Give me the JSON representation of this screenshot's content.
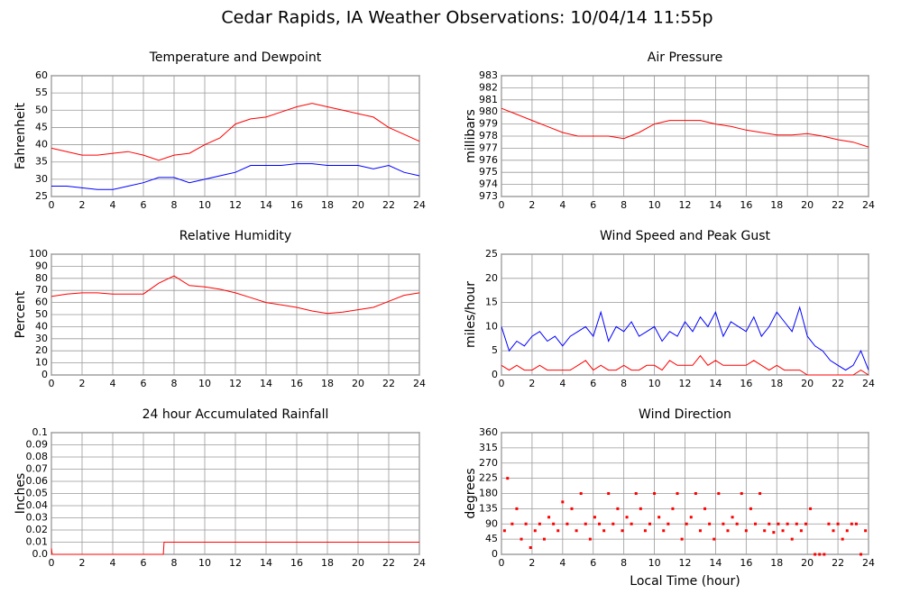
{
  "title": "Cedar Rapids, IA Weather Observations: 10/04/14 11:55p",
  "chart_data": [
    {
      "type": "line",
      "title": "Temperature and Dewpoint",
      "ylabel": "Fahrenheit",
      "x": [
        0,
        1,
        2,
        3,
        4,
        5,
        6,
        7,
        8,
        9,
        10,
        11,
        12,
        13,
        14,
        15,
        16,
        17,
        18,
        19,
        20,
        21,
        22,
        23,
        24
      ],
      "series": [
        {
          "color": "#ff0000",
          "values": [
            39,
            38,
            37,
            37,
            37.5,
            38,
            37,
            35.5,
            37,
            37.5,
            40,
            42,
            46,
            47.5,
            48,
            49.5,
            51,
            52,
            51,
            50,
            49,
            48,
            45,
            43,
            41
          ]
        },
        {
          "color": "#0000ff",
          "values": [
            28,
            28,
            27.5,
            27,
            27,
            28,
            29,
            30.5,
            30.5,
            29,
            30,
            31,
            32,
            34,
            34,
            34,
            34.5,
            34.5,
            34,
            34,
            34,
            33,
            34,
            32,
            31
          ]
        }
      ],
      "xlim": [
        0,
        24
      ],
      "xticks": [
        0,
        2,
        4,
        6,
        8,
        10,
        12,
        14,
        16,
        18,
        20,
        22,
        24
      ],
      "ylim": [
        25,
        60
      ],
      "yticks": [
        25,
        30,
        35,
        40,
        45,
        50,
        55,
        60
      ],
      "grid": true
    },
    {
      "type": "line",
      "title": "Air Pressure",
      "ylabel": "millibars",
      "x": [
        0,
        1,
        2,
        3,
        4,
        5,
        6,
        7,
        8,
        9,
        10,
        11,
        12,
        13,
        14,
        15,
        16,
        17,
        18,
        19,
        20,
        21,
        22,
        23,
        24
      ],
      "series": [
        {
          "color": "#ff0000",
          "values": [
            980.3,
            979.8,
            979.3,
            978.8,
            978.3,
            978,
            978,
            978,
            977.8,
            978.3,
            979,
            979.3,
            979.3,
            979.3,
            979,
            978.8,
            978.5,
            978.3,
            978.1,
            978.1,
            978.2,
            978,
            977.7,
            977.5,
            977.1
          ]
        }
      ],
      "xlim": [
        0,
        24
      ],
      "xticks": [
        0,
        2,
        4,
        6,
        8,
        10,
        12,
        14,
        16,
        18,
        20,
        22,
        24
      ],
      "ylim": [
        973,
        983
      ],
      "yticks": [
        973,
        974,
        975,
        976,
        977,
        978,
        979,
        980,
        981,
        982,
        983
      ],
      "grid": true
    },
    {
      "type": "line",
      "title": "Relative Humidity",
      "ylabel": "Percent",
      "x": [
        0,
        1,
        2,
        3,
        4,
        5,
        6,
        7,
        8,
        9,
        10,
        11,
        12,
        13,
        14,
        15,
        16,
        17,
        18,
        19,
        20,
        21,
        22,
        23,
        24
      ],
      "series": [
        {
          "color": "#ff0000",
          "values": [
            65,
            67,
            68,
            68,
            67,
            67,
            67,
            76,
            82,
            74,
            73,
            71,
            68,
            64,
            60,
            58,
            56,
            53,
            51,
            52,
            54,
            56,
            61,
            66,
            68
          ]
        }
      ],
      "xlim": [
        0,
        24
      ],
      "xticks": [
        0,
        2,
        4,
        6,
        8,
        10,
        12,
        14,
        16,
        18,
        20,
        22,
        24
      ],
      "ylim": [
        0,
        100
      ],
      "yticks": [
        0,
        10,
        20,
        30,
        40,
        50,
        60,
        70,
        80,
        90,
        100
      ],
      "grid": true
    },
    {
      "type": "line",
      "title": "Wind Speed and Peak Gust",
      "ylabel": "miles/hour",
      "x": [
        0,
        0.5,
        1,
        1.5,
        2,
        2.5,
        3,
        3.5,
        4,
        4.5,
        5,
        5.5,
        6,
        6.5,
        7,
        7.5,
        8,
        8.5,
        9,
        9.5,
        10,
        10.5,
        11,
        11.5,
        12,
        12.5,
        13,
        13.5,
        14,
        14.5,
        15,
        15.5,
        16,
        16.5,
        17,
        17.5,
        18,
        18.5,
        19,
        19.5,
        20,
        20.5,
        21,
        21.5,
        22,
        22.5,
        23,
        23.5,
        24
      ],
      "series": [
        {
          "color": "#0000ff",
          "values": [
            10,
            5,
            7,
            6,
            8,
            9,
            7,
            8,
            6,
            8,
            9,
            10,
            8,
            13,
            7,
            10,
            9,
            11,
            8,
            9,
            10,
            7,
            9,
            8,
            11,
            9,
            12,
            10,
            13,
            8,
            11,
            10,
            9,
            12,
            8,
            10,
            13,
            11,
            9,
            14,
            8,
            6,
            5,
            3,
            2,
            1,
            2,
            5,
            1
          ]
        },
        {
          "color": "#ff0000",
          "values": [
            2,
            1,
            2,
            1,
            1,
            2,
            1,
            1,
            1,
            1,
            2,
            3,
            1,
            2,
            1,
            1,
            2,
            1,
            1,
            2,
            2,
            1,
            3,
            2,
            2,
            2,
            4,
            2,
            3,
            2,
            2,
            2,
            2,
            3,
            2,
            1,
            2,
            1,
            1,
            1,
            0,
            0,
            0,
            0,
            0,
            0,
            0,
            1,
            0
          ]
        }
      ],
      "xlim": [
        0,
        24
      ],
      "xticks": [
        0,
        2,
        4,
        6,
        8,
        10,
        12,
        14,
        16,
        18,
        20,
        22,
        24
      ],
      "ylim": [
        0,
        25
      ],
      "yticks": [
        0,
        5,
        10,
        15,
        20,
        25
      ],
      "grid": true
    },
    {
      "type": "line",
      "title": "24 hour Accumulated Rainfall",
      "ylabel": "Inches",
      "x": [
        0,
        0.05,
        0.1,
        7.3,
        7.35,
        24
      ],
      "series": [
        {
          "color": "#ff0000",
          "values": [
            0.005,
            0,
            0,
            0,
            0.01,
            0.01
          ]
        }
      ],
      "xlim": [
        0,
        24
      ],
      "xticks": [
        0,
        2,
        4,
        6,
        8,
        10,
        12,
        14,
        16,
        18,
        20,
        22,
        24
      ],
      "ylim": [
        0,
        0.1
      ],
      "yticks": [
        {
          "value": 0,
          "label": "0.0"
        },
        0.01,
        0.02,
        0.03,
        0.04,
        0.05,
        0.06,
        0.07,
        0.08,
        0.09,
        0.1
      ],
      "grid": true
    },
    {
      "type": "scatter",
      "title": "Wind Direction",
      "ylabel": "degrees",
      "xlabel": "Local Time (hour)",
      "color": "#ff0000",
      "x": [
        0.2,
        0.4,
        0.7,
        1,
        1.3,
        1.6,
        1.9,
        2.2,
        2.5,
        2.8,
        3.1,
        3.4,
        3.7,
        4,
        4.3,
        4.6,
        4.9,
        5.2,
        5.5,
        5.8,
        6.1,
        6.4,
        6.7,
        7,
        7.3,
        7.6,
        7.9,
        8.2,
        8.5,
        8.8,
        9.1,
        9.4,
        9.7,
        10,
        10.3,
        10.6,
        10.9,
        11.2,
        11.5,
        11.8,
        12.1,
        12.4,
        12.7,
        13,
        13.3,
        13.6,
        13.9,
        14.2,
        14.5,
        14.8,
        15.1,
        15.4,
        15.7,
        16,
        16.3,
        16.6,
        16.9,
        17.2,
        17.5,
        17.8,
        18.1,
        18.4,
        18.7,
        19,
        19.3,
        19.6,
        19.9,
        20.2,
        20.5,
        20.8,
        21.1,
        21.4,
        21.7,
        22,
        22.3,
        22.6,
        22.9,
        23.2,
        23.5,
        23.8
      ],
      "values": [
        70,
        225,
        90,
        135,
        45,
        90,
        20,
        70,
        90,
        45,
        110,
        90,
        70,
        155,
        90,
        135,
        70,
        180,
        90,
        45,
        110,
        90,
        70,
        180,
        90,
        135,
        70,
        110,
        90,
        180,
        135,
        70,
        90,
        180,
        110,
        70,
        90,
        135,
        180,
        45,
        90,
        110,
        180,
        70,
        135,
        90,
        45,
        180,
        90,
        70,
        110,
        90,
        180,
        70,
        135,
        90,
        180,
        70,
        90,
        65,
        90,
        70,
        90,
        45,
        90,
        70,
        90,
        135,
        0,
        0,
        0,
        90,
        70,
        90,
        45,
        70,
        90,
        90,
        0,
        70
      ],
      "xlim": [
        0,
        24
      ],
      "xticks": [
        0,
        2,
        4,
        6,
        8,
        10,
        12,
        14,
        16,
        18,
        20,
        22,
        24
      ],
      "ylim": [
        0,
        360
      ],
      "yticks": [
        0,
        45,
        90,
        135,
        180,
        225,
        270,
        315,
        360
      ],
      "grid": true
    }
  ]
}
